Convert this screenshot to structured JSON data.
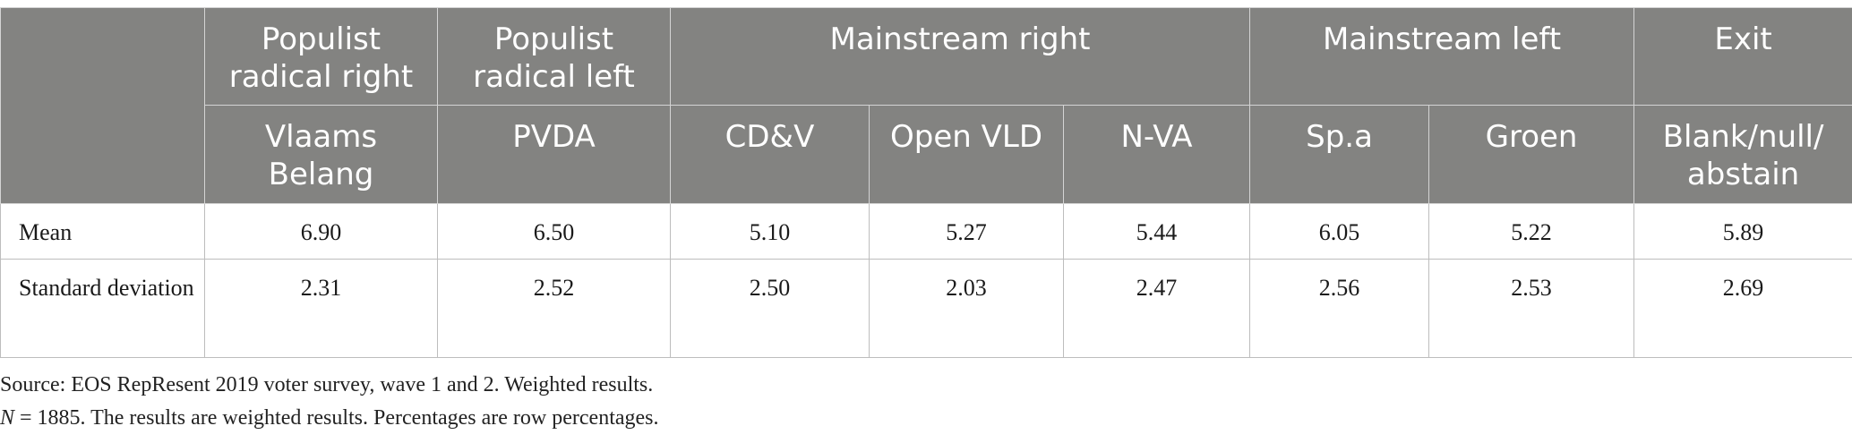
{
  "table": {
    "group_headers": [
      {
        "label": ""
      },
      {
        "label": "Populist radical right"
      },
      {
        "label": "Populist radical left"
      },
      {
        "label": "Mainstream right"
      },
      {
        "label": "Mainstream left"
      },
      {
        "label": "Exit"
      }
    ],
    "party_headers": [
      "Vlaams Belang",
      "PVDA",
      "CD&V",
      "Open VLD",
      "N-VA",
      "Sp.a",
      "Groen",
      "Blank/null/ abstain"
    ],
    "rows": [
      {
        "label": "Mean",
        "values": [
          "6.90",
          "6.50",
          "5.10",
          "5.27",
          "5.44",
          "6.05",
          "5.22",
          "5.89"
        ]
      },
      {
        "label": "Standard deviation",
        "values": [
          "2.31",
          "2.52",
          "2.50",
          "2.03",
          "2.47",
          "2.56",
          "2.53",
          "2.69"
        ]
      }
    ]
  },
  "notes": {
    "source": "Source: EOS RepResent 2019 voter survey, wave 1 and 2. Weighted results.",
    "n_symbol": "N",
    "n_text": " = 1885. The results are weighted results. Percentages are row percentages."
  },
  "colors": {
    "header_bg": "#838381",
    "header_text": "#ffffff",
    "border": "#bdbdbd"
  }
}
